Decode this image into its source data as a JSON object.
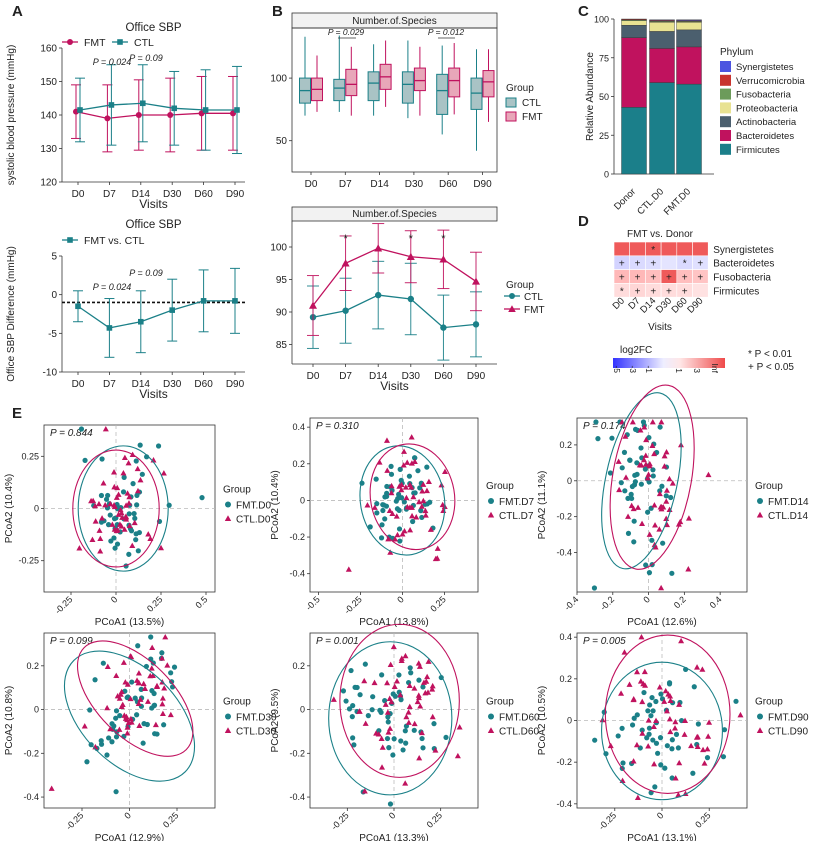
{
  "panel_labels": {
    "A": "A",
    "B": "B",
    "C": "C",
    "D": "D",
    "E": "E"
  },
  "colors": {
    "FMT": "#c0125e",
    "CTL": "#1b8088",
    "fmt_box": "#e8a7b9",
    "ctl_box": "#a9c3c5"
  },
  "chart_data": [
    {
      "id": "A1",
      "type": "line",
      "title": "Office SBP",
      "xlabel": "Visits",
      "ylabel": "systolic blood pressure (mmHg)",
      "categories": [
        "D0",
        "D7",
        "D14",
        "D30",
        "D60",
        "D90"
      ],
      "ylim": [
        120,
        160
      ],
      "yticks": [
        120,
        130,
        140,
        150,
        160
      ],
      "series": [
        {
          "name": "FMT",
          "values": [
            141,
            139,
            140,
            140,
            140.5,
            140.5
          ],
          "err": [
            8,
            10,
            10.5,
            11,
            11,
            11
          ]
        },
        {
          "name": "CTL",
          "values": [
            141.5,
            143,
            143.5,
            142,
            141.5,
            141.5
          ],
          "err": [
            9.5,
            12,
            11.5,
            11,
            12,
            13
          ]
        }
      ],
      "annotations": [
        "P = 0.024",
        "P = 0.09"
      ]
    },
    {
      "id": "A2",
      "type": "line",
      "title": "Office SBP",
      "xlabel": "Visits",
      "ylabel": "Office SBP Difference (mmHg)",
      "categories": [
        "D0",
        "D7",
        "D14",
        "D30",
        "D60",
        "D90"
      ],
      "ylim": [
        -10,
        5
      ],
      "yticks": [
        -10,
        -5,
        0,
        5
      ],
      "series": [
        {
          "name": "FMT vs. CTL",
          "values": [
            -1.5,
            -4.3,
            -3.5,
            -2,
            -0.8,
            -0.8
          ],
          "err": [
            2,
            3.8,
            4,
            4,
            4,
            4.2
          ]
        }
      ],
      "reference_line": -1,
      "annotations": [
        "P = 0.024",
        "P = 0.09"
      ]
    },
    {
      "id": "B1",
      "type": "box",
      "title": "Number.of.Species",
      "legend_title": "Group",
      "categories": [
        "D0",
        "D7",
        "D14",
        "D30",
        "D60",
        "D90"
      ],
      "ylim": [
        25,
        140
      ],
      "yticks": [
        50,
        100
      ],
      "series": [
        {
          "name": "CTL",
          "boxes": [
            [
              70,
              80,
              90,
              100,
              133
            ],
            [
              73,
              82,
              92,
              99,
              134
            ],
            [
              70,
              82,
              96,
              105,
              127
            ],
            [
              68,
              80,
              95,
              105,
              130
            ],
            [
              55,
              71,
              90,
              103,
              126
            ],
            [
              42,
              75,
              88,
              100,
              123
            ]
          ]
        },
        {
          "name": "FMT",
          "boxes": [
            [
              73,
              82,
              91,
              100,
              118
            ],
            [
              70,
              86,
              95,
              107,
              125
            ],
            [
              77,
              91,
              101,
              111,
              130
            ],
            [
              70,
              90,
              98,
              108,
              125
            ],
            [
              71,
              85,
              98,
              108,
              128
            ],
            [
              65,
              85,
              97,
              106,
              123
            ]
          ]
        }
      ],
      "annotations": [
        "P = 0.029",
        "P = 0.012"
      ]
    },
    {
      "id": "B2",
      "type": "line",
      "title": "Number.of.Species",
      "xlabel": "Visits",
      "legend_title": "Group",
      "categories": [
        "D0",
        "D7",
        "D14",
        "D30",
        "D60",
        "D90"
      ],
      "ylim": [
        82,
        104
      ],
      "yticks": [
        85,
        90,
        95,
        100
      ],
      "series": [
        {
          "name": "CTL",
          "values": [
            89.2,
            90.2,
            92.6,
            92,
            87.6,
            88.1
          ],
          "err": [
            4.8,
            5,
            5.2,
            5.5,
            5,
            5
          ]
        },
        {
          "name": "FMT",
          "values": [
            91,
            97.5,
            99.8,
            98.5,
            98.1,
            94.7
          ],
          "err": [
            4.6,
            4.2,
            3.8,
            4,
            4.5,
            4.5
          ]
        }
      ],
      "annotations": [
        "*",
        "*",
        "*"
      ]
    },
    {
      "id": "C",
      "type": "bar",
      "ylabel": "Relative Abundance",
      "legend_title": "Phylum",
      "categories": [
        "Donor",
        "CTL.D0",
        "FMT.D0"
      ],
      "ylim": [
        0,
        100
      ],
      "yticks": [
        0,
        25,
        50,
        75,
        100
      ],
      "series": [
        {
          "name": "Firmicutes",
          "values": [
            43,
            59,
            58
          ]
        },
        {
          "name": "Bacteroidetes",
          "values": [
            45,
            22,
            24
          ]
        },
        {
          "name": "Actinobacteria",
          "values": [
            8,
            11,
            11
          ]
        },
        {
          "name": "Proteobacteria",
          "values": [
            3,
            6,
            5
          ]
        },
        {
          "name": "Fusobacteria",
          "values": [
            0.5,
            0.6,
            0.5
          ]
        },
        {
          "name": "Verrucomicrobia",
          "values": [
            0.5,
            0.5,
            0.5
          ]
        },
        {
          "name": "Synergistetes",
          "values": [
            0,
            0.4,
            0.5
          ]
        }
      ],
      "series_colors": [
        "#1b7f8a",
        "#c0125e",
        "#4b5f6e",
        "#e8e292",
        "#6c9b5a",
        "#c8332e",
        "#4c54e0"
      ]
    },
    {
      "id": "D",
      "type": "heatmap",
      "title": "FMT vs. Donor",
      "xlabel": "Visits",
      "columns": [
        "D0",
        "D7",
        "D14",
        "D30",
        "D60",
        "D90"
      ],
      "rows": [
        "Synergistetes",
        "Bacteroidetes",
        "Fusobacteria",
        "Firmicutes"
      ],
      "values": [
        [
          2.5,
          2.5,
          2.5,
          2.5,
          2.5,
          2.5
        ],
        [
          -0.8,
          -0.6,
          -0.5,
          -0.3,
          -0.6,
          -0.4
        ],
        [
          0.9,
          0.9,
          0.8,
          3.5,
          0.8,
          0.7
        ],
        [
          0.3,
          0.4,
          0.3,
          0.3,
          0.3,
          0.2
        ]
      ],
      "marks": [
        [
          "",
          "",
          "*",
          "",
          "",
          ""
        ],
        [
          "+",
          "+",
          "+",
          "",
          "*",
          "+"
        ],
        [
          "+",
          "+",
          "+",
          "+",
          "+",
          "+"
        ],
        [
          "*",
          "+",
          "+",
          "+",
          "+",
          ""
        ]
      ],
      "legend_title": "log2FC",
      "legend_ticks": [
        "-5",
        "-3",
        "-1",
        "1",
        "3",
        "Inf"
      ],
      "sig_legend": [
        "* P < 0.01",
        "+ P < 0.05"
      ]
    },
    {
      "id": "E1",
      "type": "scatter",
      "p_label": "P = 0.844",
      "xlabel": "PCoA1 (13.5%)",
      "ylabel": "PCoA2 (10.4%)",
      "legend_title": "Group",
      "groups": [
        "FMT.D0",
        "CTL.D0"
      ],
      "xlim": [
        -0.4,
        0.55
      ],
      "ylim": [
        -0.4,
        0.4
      ],
      "xticks": [
        -0.25,
        0,
        0.25,
        0.5
      ],
      "yticks": [
        -0.25,
        0,
        0.25
      ]
    },
    {
      "id": "E2",
      "type": "scatter",
      "p_label": "P = 0.310",
      "xlabel": "PCoA1 (13.8%)",
      "ylabel": "PCoA2 (10.4%)",
      "legend_title": "Group",
      "groups": [
        "FMT.D7",
        "CTL.D7"
      ],
      "xlim": [
        -0.55,
        0.45
      ],
      "ylim": [
        -0.5,
        0.45
      ],
      "xticks": [
        -0.5,
        -0.25,
        0,
        0.25
      ],
      "yticks": [
        -0.4,
        -0.2,
        0,
        0.2,
        0.4
      ]
    },
    {
      "id": "E3",
      "type": "scatter",
      "p_label": "P = 0.174",
      "xlabel": "PCoA1 (12.6%)",
      "ylabel": "PCoA2 (11.1%)",
      "legend_title": "Group",
      "groups": [
        "FMT.D14",
        "CTL.D14"
      ],
      "xlim": [
        -0.4,
        0.55
      ],
      "ylim": [
        -0.62,
        0.35
      ],
      "xticks": [
        -0.4,
        -0.2,
        0,
        0.2,
        0.4
      ],
      "yticks": [
        -0.4,
        -0.2,
        0,
        0.2
      ]
    },
    {
      "id": "E4",
      "type": "scatter",
      "p_label": "P = 0.099",
      "xlabel": "PCoA1 (12.9%)",
      "ylabel": "PCoA2 (10.8%)",
      "legend_title": "Group",
      "groups": [
        "FMT.D30",
        "CTL.D30"
      ],
      "xlim": [
        -0.45,
        0.45
      ],
      "ylim": [
        -0.45,
        0.35
      ],
      "xticks": [
        -0.25,
        0,
        0.25
      ],
      "yticks": [
        -0.4,
        -0.2,
        0,
        0.2
      ]
    },
    {
      "id": "E5",
      "type": "scatter",
      "p_label": "P = 0.001",
      "xlabel": "PCoA1 (13.3%)",
      "ylabel": "PCoA2 (9.5%)",
      "legend_title": "Group",
      "groups": [
        "FMT.D60",
        "CTL.D60"
      ],
      "xlim": [
        -0.45,
        0.45
      ],
      "ylim": [
        -0.45,
        0.35
      ],
      "xticks": [
        -0.25,
        0,
        0.25
      ],
      "yticks": [
        -0.4,
        -0.2,
        0,
        0.2
      ]
    },
    {
      "id": "E6",
      "type": "scatter",
      "p_label": "P = 0.005",
      "xlabel": "PCoA1 (13.1%)",
      "ylabel": "PCoA2 (10.5%)",
      "legend_title": "Group",
      "groups": [
        "FMT.D90",
        "CTL.D90"
      ],
      "xlim": [
        -0.45,
        0.45
      ],
      "ylim": [
        -0.42,
        0.42
      ],
      "xticks": [
        -0.25,
        0,
        0.25
      ],
      "yticks": [
        -0.4,
        -0.2,
        0,
        0.2,
        0.4
      ]
    }
  ]
}
